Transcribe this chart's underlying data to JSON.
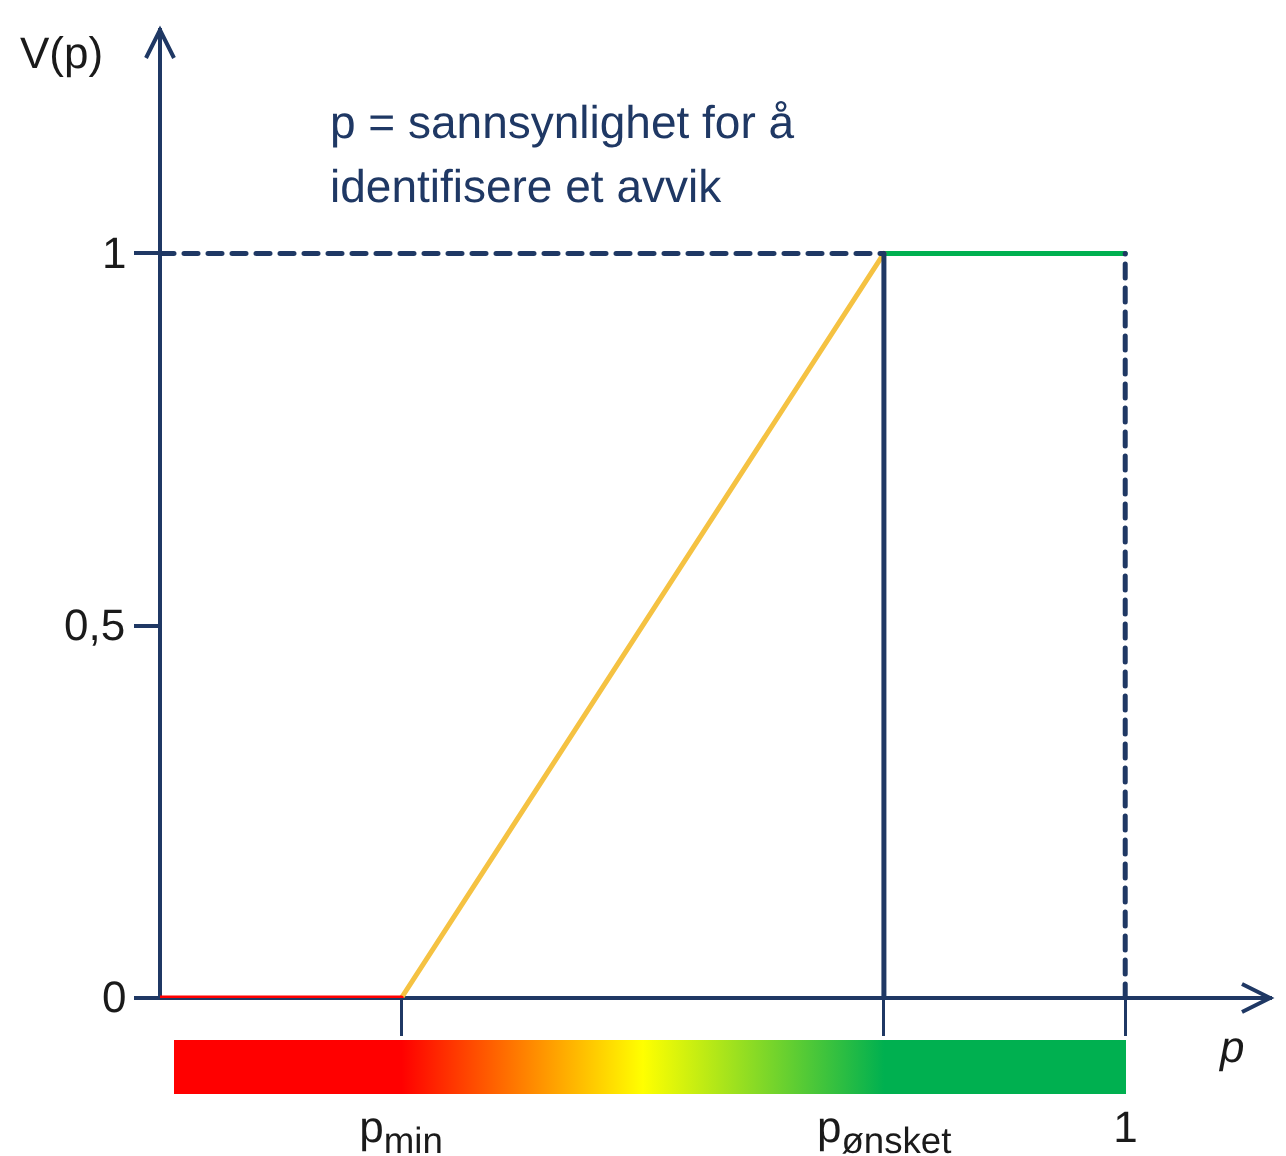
{
  "chart_data": {
    "type": "line",
    "ylabel": "V(p)",
    "xlabel": "p",
    "annotations": [
      "p = sannsynlighet for å identifisere et avvik"
    ],
    "categories": [
      null,
      null,
      "p$_{min}$",
      null,
      null,
      null,
      "p$_{ønsket}$",
      null,
      "1",
      null
    ],
    "ylim": [
      0,
      1.3
    ],
    "yticks": [
      0,
      {
        "value": 0.5,
        "label": "0,5"
      },
      1
    ],
    "grid": false,
    "legend": false,
    "marker": "none",
    "series": [
      {
        "color": "#1f3864",
        "values": [
          1,
          1,
          1,
          1,
          1,
          1,
          1,
          null,
          null,
          null
        ],
        "line_style": "dashed"
      },
      {
        "color": "#1f3864",
        "x": [
          "p$_{ønsket}$",
          "p$_{ønsket}$"
        ],
        "values": [
          0,
          1
        ],
        "line_style": "solid"
      },
      {
        "color": "#1f3864",
        "x": [
          "1",
          "1"
        ],
        "values": [
          0,
          1
        ],
        "line_style": "dashed"
      },
      {
        "color": "#ff0000",
        "values": [
          0,
          0,
          0,
          null,
          null,
          null,
          null,
          null,
          null,
          null
        ]
      },
      {
        "color": "#f5c242",
        "x": [
          "p$_{min}$",
          "p$_{ønsket}$"
        ],
        "values": [
          0,
          1
        ]
      },
      {
        "color": "#00b050",
        "values": [
          null,
          null,
          null,
          null,
          null,
          null,
          1,
          1,
          1,
          null
        ]
      }
    ]
  }
}
